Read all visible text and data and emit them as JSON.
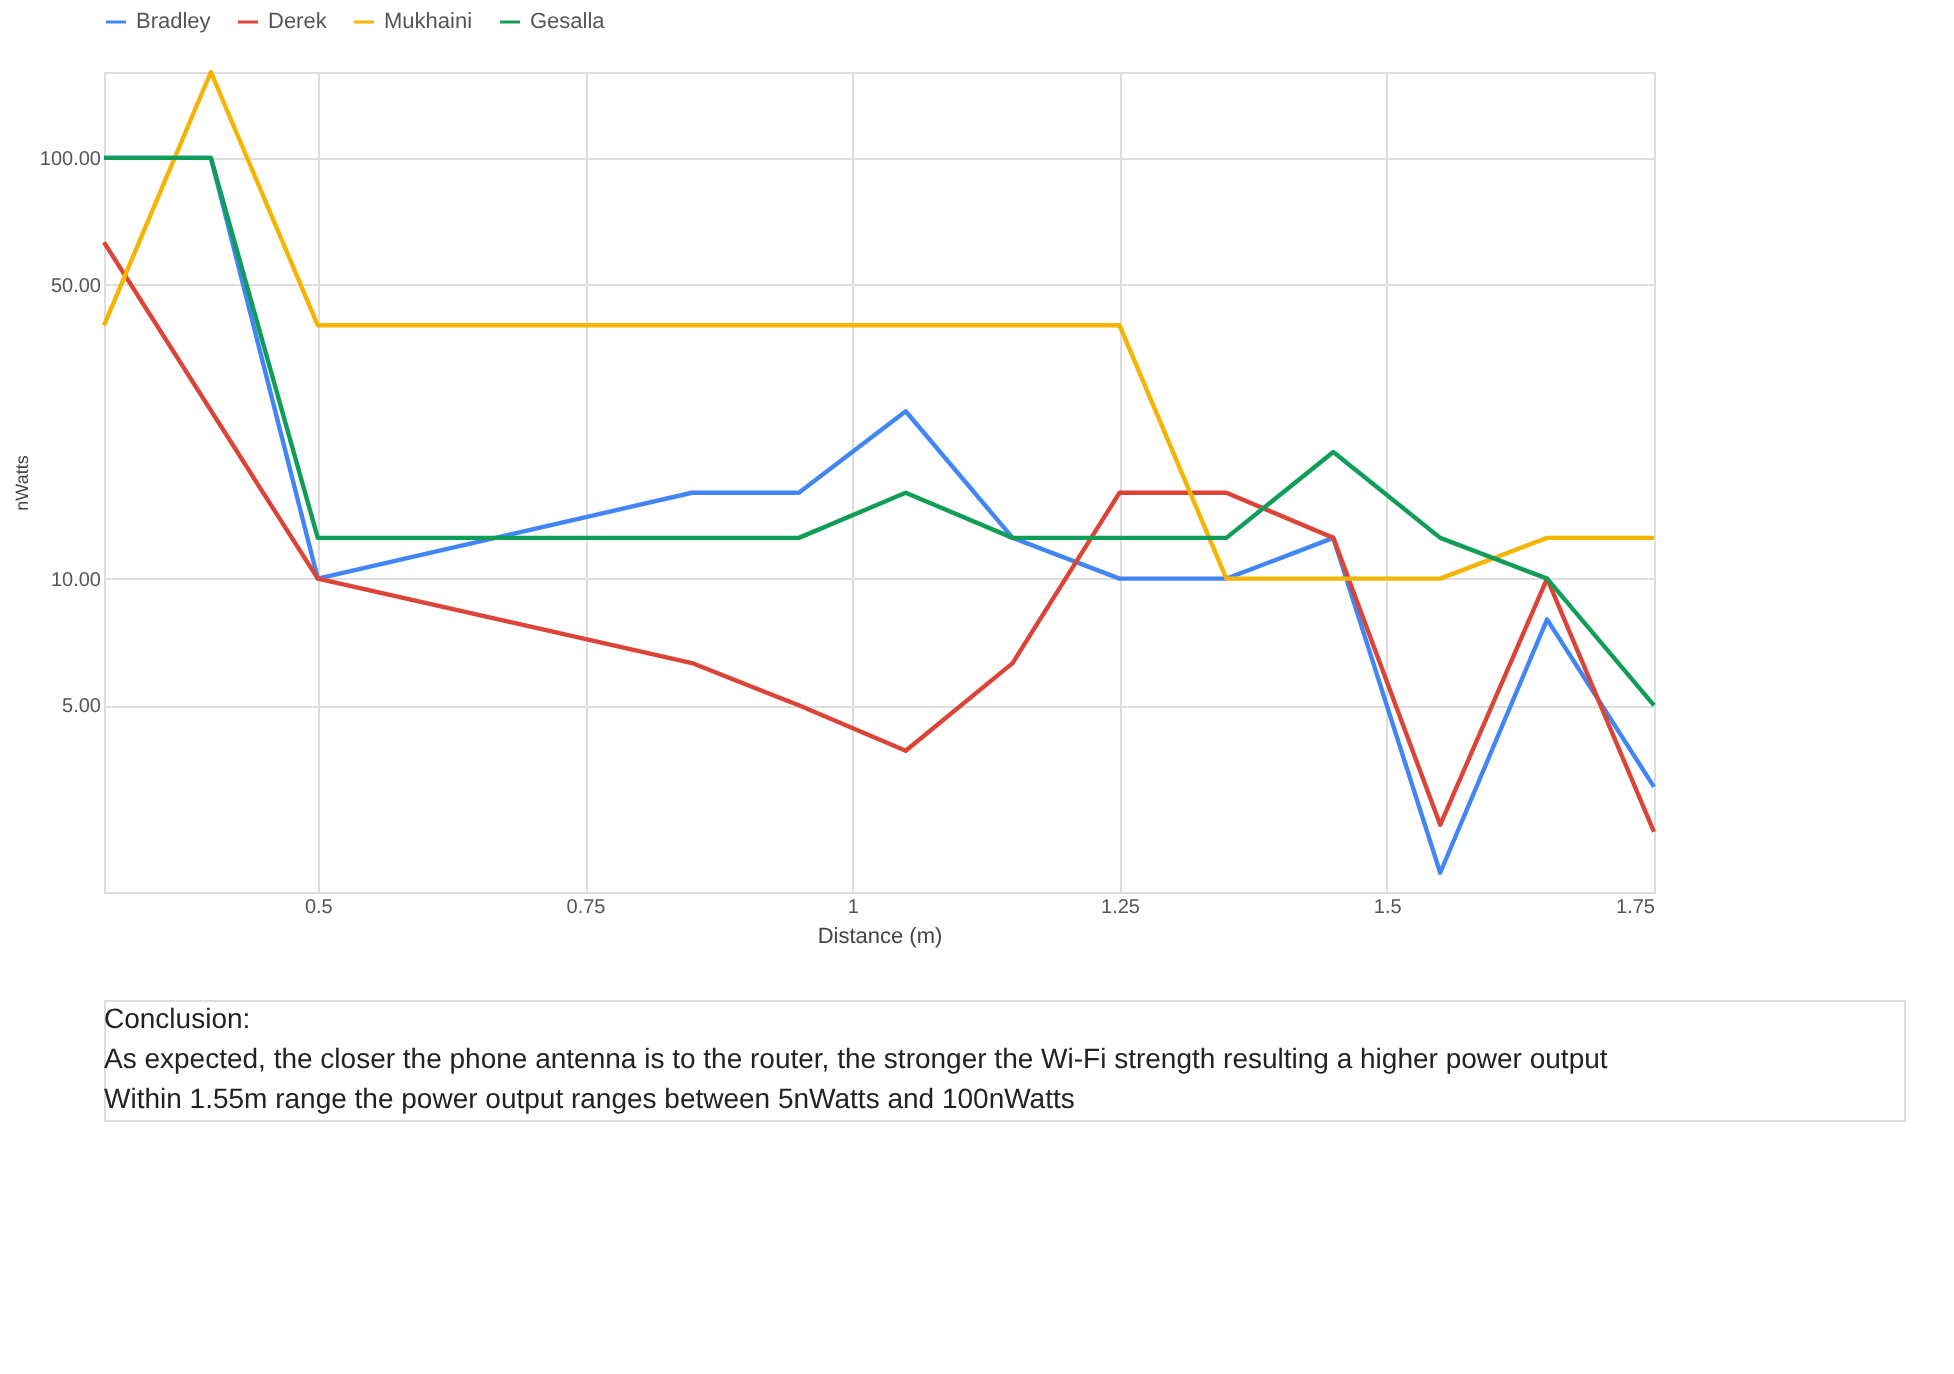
{
  "chart_data": {
    "type": "line",
    "xlabel": "Distance (m)",
    "ylabel": "nWatts",
    "log": "y",
    "grid": true,
    "legend": "top",
    "line_style": "solid",
    "marker": "none",
    "xlim": [
      0.3,
      1.75
    ],
    "xticks": [
      0.5,
      0.75,
      1,
      1.25,
      1.5,
      1.75
    ],
    "ylim": [
      1.8,
      160
    ],
    "yticks": [
      {
        "value": 5,
        "label": "5.00"
      },
      {
        "value": 10,
        "label": "10.00"
      },
      {
        "value": 50,
        "label": "50.00"
      },
      {
        "value": 100,
        "label": "100.00"
      }
    ],
    "series": [
      {
        "name": "Bradley",
        "color": "#4285f4",
        "x": [
          0.3,
          0.4,
          0.5,
          0.85,
          0.95,
          1.05,
          1.15,
          1.25,
          1.35,
          1.45,
          1.55,
          1.65,
          1.75
        ],
        "values": [
          100,
          100,
          10,
          16,
          16,
          25,
          12.5,
          10,
          10,
          12.5,
          2,
          8,
          3.2
        ]
      },
      {
        "name": "Derek",
        "color": "#db4437",
        "x": [
          0.3,
          0.5,
          0.85,
          0.95,
          1.05,
          1.15,
          1.25,
          1.35,
          1.45,
          1.55,
          1.65,
          1.75
        ],
        "values": [
          63,
          10,
          6.3,
          5,
          3.9,
          6.3,
          16,
          16,
          12.5,
          2.6,
          10,
          2.5
        ]
      },
      {
        "name": "Mukhaini",
        "color": "#f4b400",
        "x": [
          0.3,
          0.4,
          0.5,
          1.25,
          1.35,
          1.45,
          1.55,
          1.65,
          1.75
        ],
        "values": [
          40,
          160,
          40,
          40,
          10,
          10,
          10,
          12.5,
          12.5
        ]
      },
      {
        "name": "Gesalla",
        "color": "#0f9d58",
        "x": [
          0.3,
          0.4,
          0.5,
          0.95,
          1.05,
          1.15,
          1.25,
          1.35,
          1.45,
          1.55,
          1.65,
          1.75
        ],
        "values": [
          100,
          100,
          12.5,
          12.5,
          16,
          12.5,
          12.5,
          12.5,
          20,
          12.5,
          10,
          5
        ]
      }
    ],
    "annotations": [
      "Conclusion:",
      "As expected, the closer the phone antenna is to the router, the stronger the Wi-Fi strength resulting a higher power output",
      "Within 1.55m range the power output ranges between 5nWatts and 100nWatts"
    ]
  }
}
